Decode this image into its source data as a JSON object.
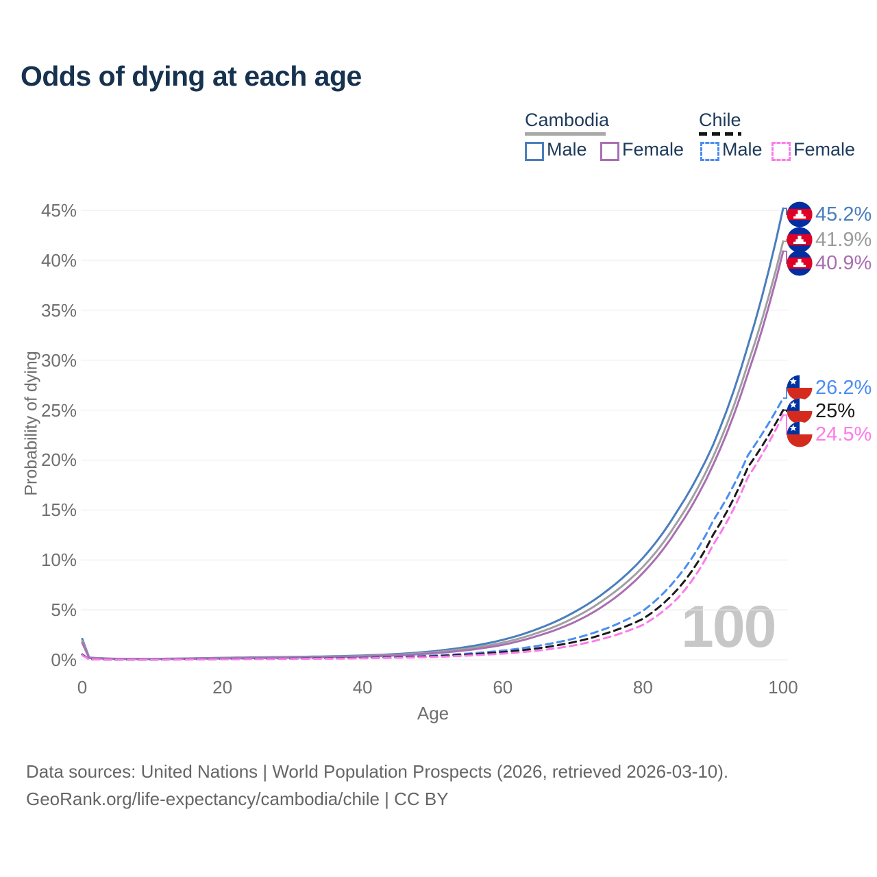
{
  "title": "Odds of dying at each age",
  "legend": {
    "groups": [
      {
        "label": "Cambodia",
        "line_style": "solid",
        "line_color": "#a8a8a8",
        "items": [
          {
            "label": "Male",
            "swatch_color": "#4a7ebd",
            "swatch_style": "solid"
          },
          {
            "label": "Female",
            "swatch_color": "#aa6eb2",
            "swatch_style": "solid"
          }
        ]
      },
      {
        "label": "Chile",
        "line_style": "dashed",
        "line_color": "#141414",
        "items": [
          {
            "label": "Male",
            "swatch_color": "#4b8df2",
            "swatch_style": "dashed"
          },
          {
            "label": "Female",
            "swatch_color": "#fb7ce9",
            "swatch_style": "dashed"
          }
        ]
      }
    ]
  },
  "watermark": "100",
  "footer": {
    "line1": "Data sources: United Nations | World Population Prospects (2026, retrieved 2026-03-10).",
    "line2": "GeoRank.org/life-expectancy/cambodia/chile | CC BY"
  },
  "chart_data": {
    "type": "line",
    "title": "Odds of dying at each age",
    "xlabel": "Age",
    "ylabel": "Probability of dying",
    "xlim": [
      0,
      100
    ],
    "ylim_percent": [
      0,
      45
    ],
    "x_ticks": [
      0,
      20,
      40,
      60,
      80,
      100
    ],
    "y_ticks": [
      "0%",
      "5%",
      "10%",
      "15%",
      "20%",
      "25%",
      "30%",
      "35%",
      "40%",
      "45%"
    ],
    "grid": "horizontal",
    "legend_position": "top-right",
    "anchor_ages": [
      0,
      1,
      5,
      10,
      15,
      20,
      25,
      30,
      35,
      40,
      45,
      50,
      55,
      60,
      65,
      70,
      75,
      80,
      85,
      90,
      95,
      100
    ],
    "series": [
      {
        "name": "Cambodia Male",
        "country": "Cambodia",
        "sex": "Male",
        "style": "solid",
        "color": "#4a7ebd",
        "flag": "cambodia",
        "end_label": "45.2%",
        "end_label_color": "#4a7ebd",
        "values_percent": [
          2.1,
          0.22,
          0.1,
          0.09,
          0.14,
          0.2,
          0.25,
          0.29,
          0.34,
          0.43,
          0.58,
          0.85,
          1.3,
          2.0,
          3.1,
          4.7,
          7.0,
          10.2,
          15.0,
          21.5,
          31.5,
          45.2
        ]
      },
      {
        "name": "Cambodia Both sexes",
        "country": "Cambodia",
        "sex": "Both",
        "style": "solid",
        "color": "#a0a0a0",
        "flag": "cambodia",
        "end_label": "41.9%",
        "end_label_color": "#9b9b9b",
        "values_percent": [
          1.9,
          0.2,
          0.09,
          0.08,
          0.12,
          0.17,
          0.21,
          0.25,
          0.3,
          0.38,
          0.51,
          0.75,
          1.12,
          1.72,
          2.7,
          4.15,
          6.3,
          9.3,
          13.9,
          20.3,
          29.7,
          41.9
        ]
      },
      {
        "name": "Cambodia Female",
        "country": "Cambodia",
        "sex": "Female",
        "style": "solid",
        "color": "#aa6eb2",
        "flag": "cambodia",
        "end_label": "40.9%",
        "end_label_color": "#aa6eb2",
        "values_percent": [
          1.7,
          0.18,
          0.08,
          0.07,
          0.1,
          0.14,
          0.17,
          0.21,
          0.26,
          0.33,
          0.44,
          0.65,
          0.97,
          1.5,
          2.4,
          3.7,
          5.7,
          8.7,
          13.2,
          19.5,
          28.7,
          40.9
        ]
      },
      {
        "name": "Chile Male",
        "country": "Chile",
        "sex": "Male",
        "style": "dashed",
        "color": "#4b8df2",
        "flag": "chile",
        "end_label": "26.2%",
        "end_label_color": "#4b8df2",
        "values_percent": [
          0.55,
          0.05,
          0.02,
          0.02,
          0.05,
          0.09,
          0.11,
          0.13,
          0.16,
          0.21,
          0.29,
          0.42,
          0.62,
          0.92,
          1.4,
          2.1,
          3.2,
          4.9,
          8.3,
          13.9,
          20.5,
          26.2
        ]
      },
      {
        "name": "Chile Both sexes",
        "country": "Chile",
        "sex": "Both",
        "style": "dashed",
        "color": "#1a1a1a",
        "flag": "chile",
        "end_label": "25%",
        "end_label_color": "#1a1a1a",
        "values_percent": [
          0.5,
          0.04,
          0.02,
          0.02,
          0.04,
          0.07,
          0.09,
          0.11,
          0.14,
          0.18,
          0.24,
          0.35,
          0.52,
          0.77,
          1.15,
          1.75,
          2.7,
          4.1,
          7.1,
          12.5,
          19.3,
          25.0
        ]
      },
      {
        "name": "Chile Female",
        "country": "Chile",
        "sex": "Female",
        "style": "dashed",
        "color": "#fb7ce9",
        "flag": "chile",
        "end_label": "24.5%",
        "end_label_color": "#fb7ce9",
        "values_percent": [
          0.45,
          0.04,
          0.02,
          0.02,
          0.03,
          0.05,
          0.07,
          0.09,
          0.11,
          0.15,
          0.2,
          0.28,
          0.42,
          0.62,
          0.92,
          1.42,
          2.25,
          3.5,
          6.2,
          11.5,
          18.3,
          24.5
        ]
      }
    ],
    "flag_colors": {
      "cambodia_blue": "#032ea1",
      "cambodia_red": "#e00025",
      "chile_blue": "#0033a0",
      "chile_red": "#d52b1e"
    }
  }
}
